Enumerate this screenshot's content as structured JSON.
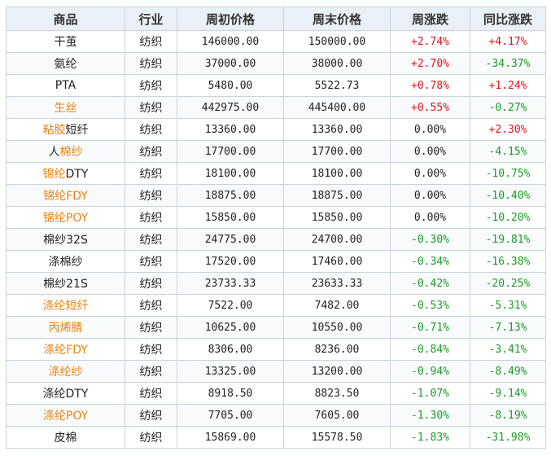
{
  "colors": {
    "up": "#e0141e",
    "down": "#1a9c24",
    "flat": "#222222",
    "highlight": "#e8830f",
    "header_bg": "#e9f0f7"
  },
  "table": {
    "headers": [
      "商品",
      "行业",
      "周初价格",
      "周末价格",
      "周涨跌",
      "同比涨跌"
    ],
    "rows": [
      {
        "name": [
          {
            "t": "干茧",
            "hl": false
          }
        ],
        "industry": "纺织",
        "start": "146000.00",
        "end": "150000.00",
        "week": "+2.74%",
        "yoy": "+4.17%"
      },
      {
        "name": [
          {
            "t": "氨纶",
            "hl": false
          }
        ],
        "industry": "纺织",
        "start": "37000.00",
        "end": "38000.00",
        "week": "+2.70%",
        "yoy": "-34.37%"
      },
      {
        "name": [
          {
            "t": "PTA",
            "hl": false
          }
        ],
        "industry": "纺织",
        "start": "5480.00",
        "end": "5522.73",
        "week": "+0.78%",
        "yoy": "+1.24%"
      },
      {
        "name": [
          {
            "t": "生丝",
            "hl": true
          }
        ],
        "industry": "纺织",
        "start": "442975.00",
        "end": "445400.00",
        "week": "+0.55%",
        "yoy": "-0.27%"
      },
      {
        "name": [
          {
            "t": "粘胶",
            "hl": true
          },
          {
            "t": "短纤",
            "hl": false
          }
        ],
        "industry": "纺织",
        "start": "13360.00",
        "end": "13360.00",
        "week": "0.00%",
        "yoy": "+2.30%"
      },
      {
        "name": [
          {
            "t": "人",
            "hl": false
          },
          {
            "t": "棉纱",
            "hl": true
          }
        ],
        "industry": "纺织",
        "start": "17700.00",
        "end": "17700.00",
        "week": "0.00%",
        "yoy": "-4.15%"
      },
      {
        "name": [
          {
            "t": "锦纶",
            "hl": true
          },
          {
            "t": "DTY",
            "hl": false
          }
        ],
        "industry": "纺织",
        "start": "18100.00",
        "end": "18100.00",
        "week": "0.00%",
        "yoy": "-10.75%"
      },
      {
        "name": [
          {
            "t": "锦纶FDY",
            "hl": true
          }
        ],
        "industry": "纺织",
        "start": "18875.00",
        "end": "18875.00",
        "week": "0.00%",
        "yoy": "-10.40%"
      },
      {
        "name": [
          {
            "t": "锦纶POY",
            "hl": true
          }
        ],
        "industry": "纺织",
        "start": "15850.00",
        "end": "15850.00",
        "week": "0.00%",
        "yoy": "-10.20%"
      },
      {
        "name": [
          {
            "t": "棉纱32S",
            "hl": false
          }
        ],
        "industry": "纺织",
        "start": "24775.00",
        "end": "24700.00",
        "week": "-0.30%",
        "yoy": "-19.81%"
      },
      {
        "name": [
          {
            "t": "涤棉纱",
            "hl": false
          }
        ],
        "industry": "纺织",
        "start": "17520.00",
        "end": "17460.00",
        "week": "-0.34%",
        "yoy": "-16.38%"
      },
      {
        "name": [
          {
            "t": "棉纱21S",
            "hl": false
          }
        ],
        "industry": "纺织",
        "start": "23733.33",
        "end": "23633.33",
        "week": "-0.42%",
        "yoy": "-20.25%"
      },
      {
        "name": [
          {
            "t": "涤纶短纤",
            "hl": true
          }
        ],
        "industry": "纺织",
        "start": "7522.00",
        "end": "7482.00",
        "week": "-0.53%",
        "yoy": "-5.31%"
      },
      {
        "name": [
          {
            "t": "丙烯腈",
            "hl": true
          }
        ],
        "industry": "纺织",
        "start": "10625.00",
        "end": "10550.00",
        "week": "-0.71%",
        "yoy": "-7.13%"
      },
      {
        "name": [
          {
            "t": "涤纶FDY",
            "hl": true
          }
        ],
        "industry": "纺织",
        "start": "8306.00",
        "end": "8236.00",
        "week": "-0.84%",
        "yoy": "-3.41%"
      },
      {
        "name": [
          {
            "t": "涤纶纱",
            "hl": true
          }
        ],
        "industry": "纺织",
        "start": "13325.00",
        "end": "13200.00",
        "week": "-0.94%",
        "yoy": "-8.49%"
      },
      {
        "name": [
          {
            "t": "涤纶DTY",
            "hl": false
          }
        ],
        "industry": "纺织",
        "start": "8918.50",
        "end": "8823.50",
        "week": "-1.07%",
        "yoy": "-9.14%"
      },
      {
        "name": [
          {
            "t": "涤纶POY",
            "hl": true
          }
        ],
        "industry": "纺织",
        "start": "7705.00",
        "end": "7605.00",
        "week": "-1.30%",
        "yoy": "-8.19%"
      },
      {
        "name": [
          {
            "t": "皮棉",
            "hl": false
          }
        ],
        "industry": "纺织",
        "start": "15869.00",
        "end": "15578.50",
        "week": "-1.83%",
        "yoy": "-31.98%"
      }
    ]
  }
}
